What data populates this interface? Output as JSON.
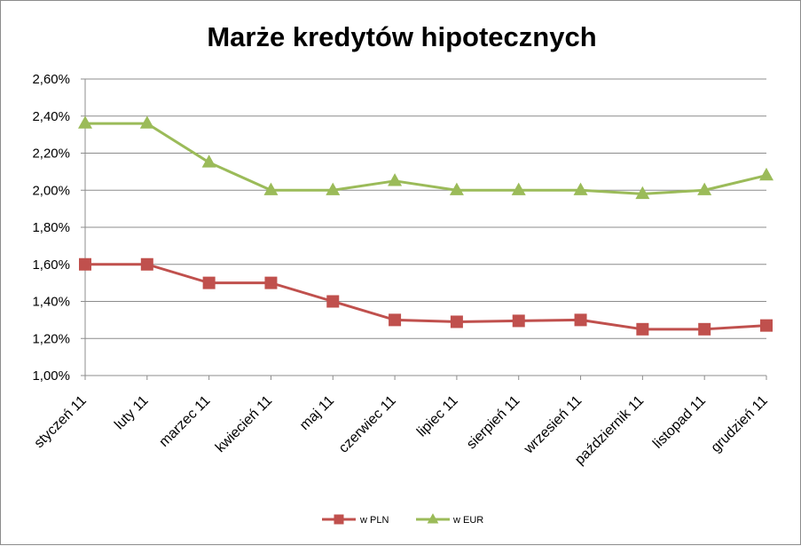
{
  "chart_data": {
    "type": "line",
    "title": "Marże kredytów hipotecznych",
    "categories": [
      "styczeń 11",
      "luty 11",
      "marzec 11",
      "kwiecień 11",
      "maj 11",
      "czerwiec 11",
      "lipiec 11",
      "sierpień 11",
      "wrzesień 11",
      "październik 11",
      "listopad 11",
      "grudzień 11"
    ],
    "series": [
      {
        "name": "w PLN",
        "color": "#c0504d",
        "marker": "square",
        "values": [
          1.6,
          1.6,
          1.5,
          1.5,
          1.4,
          1.3,
          1.29,
          1.295,
          1.3,
          1.25,
          1.25,
          1.27
        ]
      },
      {
        "name": "w EUR",
        "color": "#9bbb59",
        "marker": "triangle",
        "values": [
          2.36,
          2.36,
          2.15,
          2.0,
          2.0,
          2.05,
          2.0,
          2.0,
          2.0,
          1.98,
          2.0,
          2.08
        ]
      }
    ],
    "ylim": [
      1.0,
      2.6
    ],
    "yticks": [
      "1,00%",
      "1,20%",
      "1,40%",
      "1,60%",
      "1,80%",
      "2,00%",
      "2,20%",
      "2,40%",
      "2,60%"
    ],
    "grid": true,
    "legend": "bottom"
  }
}
